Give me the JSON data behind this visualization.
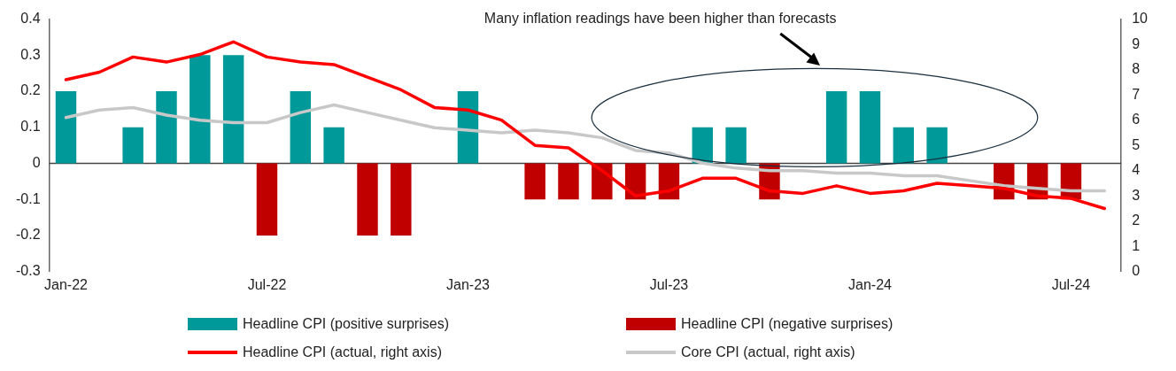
{
  "chart_data": {
    "type": "bar",
    "categories": [
      "Jan-22",
      null,
      null,
      null,
      null,
      null,
      "Jul-22",
      null,
      null,
      null,
      null,
      null,
      "Jan-23",
      null,
      null,
      null,
      null,
      null,
      "Jul-23",
      null,
      null,
      null,
      null,
      null,
      "Jan-24",
      null,
      null,
      null,
      null,
      null,
      "Jul-24",
      null
    ],
    "series": [
      {
        "name": "Headline CPI (positive surprises)",
        "color": "#009999",
        "values": [
          0.2,
          null,
          0.1,
          0.2,
          0.3,
          0.3,
          null,
          0.2,
          0.1,
          null,
          null,
          null,
          0.2,
          null,
          null,
          null,
          null,
          null,
          null,
          0.1,
          0.1,
          null,
          null,
          0.2,
          0.2,
          0.1,
          0.1,
          null,
          null,
          null,
          null,
          null
        ]
      },
      {
        "name": "Headline CPI (negative surprises)",
        "color": "#c00000",
        "values": [
          null,
          null,
          null,
          null,
          null,
          null,
          -0.2,
          null,
          null,
          -0.2,
          -0.2,
          null,
          null,
          null,
          -0.1,
          -0.1,
          -0.1,
          -0.1,
          -0.1,
          null,
          null,
          -0.1,
          null,
          null,
          null,
          null,
          null,
          null,
          -0.1,
          -0.1,
          -0.1,
          null
        ]
      },
      {
        "name": "Headline CPI (actual, right axis)",
        "type": "line",
        "axis": "y2",
        "color": "#ff0000",
        "values": [
          7.6,
          7.9,
          8.5,
          8.3,
          8.6,
          9.1,
          8.5,
          8.3,
          8.2,
          7.7,
          7.2,
          6.5,
          6.4,
          6.0,
          5.0,
          4.9,
          4.0,
          3.0,
          3.2,
          3.7,
          3.7,
          3.2,
          3.1,
          3.4,
          3.1,
          3.2,
          3.5,
          3.4,
          3.3,
          3.0,
          2.9,
          2.5
        ]
      },
      {
        "name": "Core CPI (actual, right axis)",
        "type": "line",
        "axis": "y2",
        "color": "#c8c8c8",
        "values": [
          6.1,
          6.4,
          6.5,
          6.2,
          6.0,
          5.9,
          5.9,
          6.3,
          6.6,
          6.3,
          6.0,
          5.7,
          5.6,
          5.5,
          5.6,
          5.5,
          5.3,
          4.8,
          4.7,
          4.3,
          4.1,
          4.0,
          4.0,
          3.9,
          3.9,
          3.8,
          3.8,
          3.6,
          3.4,
          3.3,
          3.2,
          3.2
        ]
      }
    ],
    "ylim": [
      -0.3,
      0.4
    ],
    "yticks": [
      -0.3,
      -0.2,
      -0.1,
      0,
      0.1,
      0.2,
      0.3,
      0.4
    ],
    "y2lim": [
      0,
      10
    ],
    "y2ticks": [
      0,
      1,
      2,
      3,
      4,
      5,
      6,
      7,
      8,
      9,
      10
    ],
    "annotations": [
      "Many inflation readings have been higher than forecasts"
    ],
    "legend": "bottom",
    "marker": "none",
    "line_style": "solid"
  }
}
